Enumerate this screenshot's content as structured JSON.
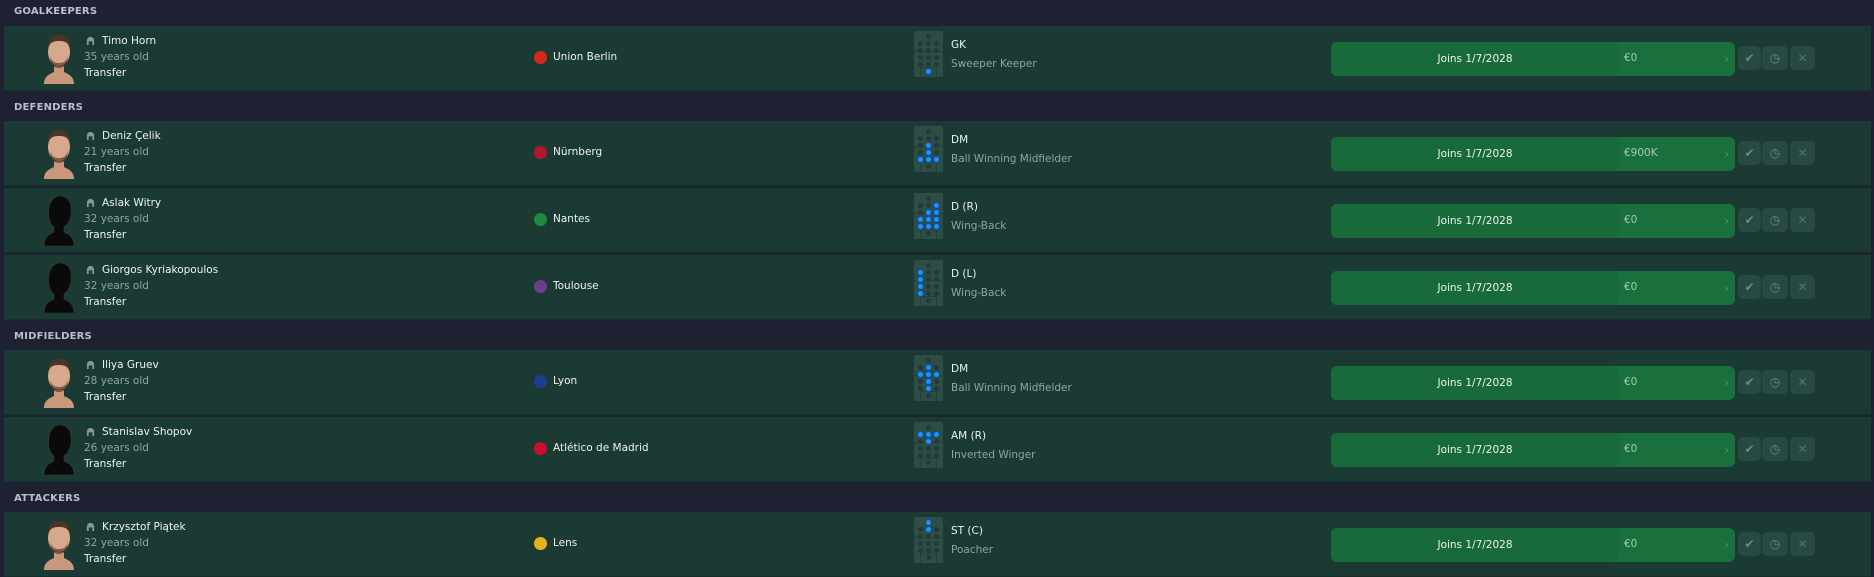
{
  "colors": {
    "background": "#1e2131",
    "row": "#1b3a33",
    "offer_button": "#19703d",
    "highlight_dot": "#1e90ff"
  },
  "sections": [
    {
      "title": "GOALKEEPERS",
      "players": [
        {
          "name": "Timo Horn",
          "age": "35 years old",
          "deal": "Transfer",
          "club": "Union Berlin",
          "club_color": "#d4281c",
          "position": "GK",
          "role": "Sweeper Keeper",
          "pitch_positions": [
            "GK"
          ],
          "offer": "Joins 1/7/2028",
          "fee": "€0",
          "avatar": "photo"
        }
      ]
    },
    {
      "title": "DEFENDERS",
      "players": [
        {
          "name": "Deniz Çelik",
          "age": "21 years old",
          "deal": "Transfer",
          "club": "Nürnberg",
          "club_color": "#b3172b",
          "position": "DM",
          "role": "Ball Winning Midfielder",
          "pitch_positions": [
            "M C",
            "DM C",
            "D L",
            "D C",
            "D R"
          ],
          "offer": "Joins 1/7/2028",
          "fee": "€900K",
          "avatar": "photo"
        },
        {
          "name": "Aslak Witry",
          "age": "32 years old",
          "deal": "Transfer",
          "club": "Nantes",
          "club_color": "#1f8a3f",
          "position": "D (R)",
          "role": "Wing-Back",
          "pitch_positions": [
            "AM R",
            "M C",
            "M R",
            "DM L",
            "DM C",
            "DM R",
            "D L",
            "D C",
            "D R"
          ],
          "offer": "Joins 1/7/2028",
          "fee": "€0",
          "avatar": "silhouette"
        },
        {
          "name": "Giorgos Kyriakopoulos",
          "age": "32 years old",
          "deal": "Transfer",
          "club": "Toulouse",
          "club_color": "#6b3d8a",
          "position": "D (L)",
          "role": "Wing-Back",
          "pitch_positions": [
            "AM L",
            "M L",
            "DM L",
            "D L"
          ],
          "offer": "Joins 1/7/2028",
          "fee": "€0",
          "avatar": "silhouette"
        }
      ]
    },
    {
      "title": "MIDFIELDERS",
      "players": [
        {
          "name": "Iliya Gruev",
          "age": "28 years old",
          "deal": "Transfer",
          "club": "Lyon",
          "club_color": "#1d3d8f",
          "position": "DM",
          "role": "Ball Winning Midfielder",
          "pitch_positions": [
            "AM C",
            "M L",
            "M C",
            "M R",
            "DM C",
            "D C"
          ],
          "offer": "Joins 1/7/2028",
          "fee": "€0",
          "avatar": "photo"
        },
        {
          "name": "Stanislav Shopov",
          "age": "26 years old",
          "deal": "Transfer",
          "club": "Atlético de Madrid",
          "club_color": "#c8102e",
          "position": "AM (R)",
          "role": "Inverted Winger",
          "pitch_positions": [
            "AM L",
            "AM C",
            "AM R",
            "M C"
          ],
          "offer": "Joins 1/7/2028",
          "fee": "€0",
          "avatar": "silhouette"
        }
      ]
    },
    {
      "title": "ATTACKERS",
      "players": [
        {
          "name": "Krzysztof Piątek",
          "age": "32 years old",
          "deal": "Transfer",
          "club": "Lens",
          "club_color": "#e3b21c",
          "position": "ST (C)",
          "role": "Poacher",
          "pitch_positions": [
            "ST C",
            "AM C"
          ],
          "offer": "Joins 1/7/2028",
          "fee": "€0",
          "avatar": "photo"
        }
      ]
    }
  ],
  "actions": {
    "accept_icon": "check-icon",
    "later_icon": "clock-icon",
    "reject_icon": "close-icon",
    "accept": "✔",
    "later": "◷",
    "reject": "✕",
    "chevron": "›"
  }
}
